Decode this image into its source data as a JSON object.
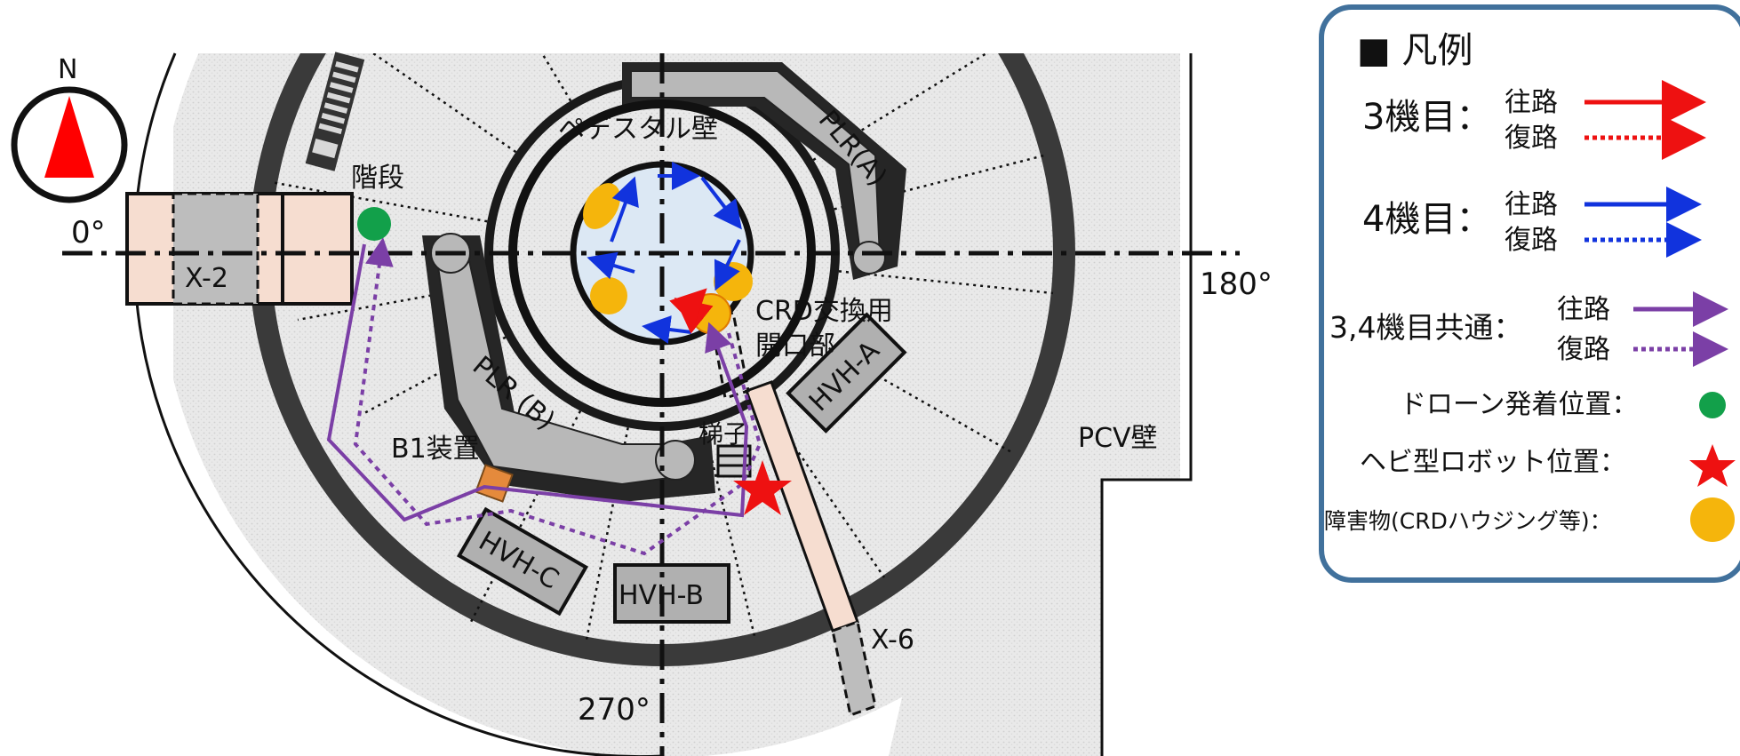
{
  "diagram": {
    "compass_letter": "N",
    "angles": {
      "deg0": "0°",
      "deg180": "180°",
      "deg270": "270°"
    },
    "labels": {
      "stairs": "階段",
      "x2": "X-2",
      "x6": "X-6",
      "pedestal_wall": "ペデスタル壁",
      "plr_a": "PLR(A)",
      "plr_b": "PLR (B)",
      "crd_opening_line1": "CRD交換用",
      "crd_opening_line2": "開口部",
      "hvh_a": "HVH-A",
      "hvh_b": "HVH-B",
      "hvh_c": "HVH-C",
      "b1_device": "B1装置",
      "ladder": "梯子",
      "pcv_wall": "PCV壁"
    }
  },
  "legend": {
    "title": "■ 凡例",
    "rows": [
      {
        "name": "3機目：",
        "outbound": "往路",
        "return": "復路"
      },
      {
        "name": "4機目：",
        "outbound": "往路",
        "return": "復路"
      },
      {
        "name": "3,4機目共通：",
        "outbound": "往路",
        "return": "復路"
      }
    ],
    "drone_site": "ドローン発着位置：",
    "snake_robot": "ヘビ型ロボット位置：",
    "obstacle": "障害物(CRDハウジング等)：",
    "colors": {
      "unit3": "#ee1111",
      "unit4": "#1133dd",
      "common": "#7b3fa6",
      "drone": "#12a04a",
      "robot": "#ee1111",
      "obstacle": "#f5b50c",
      "legend_border": "#41719c"
    }
  }
}
